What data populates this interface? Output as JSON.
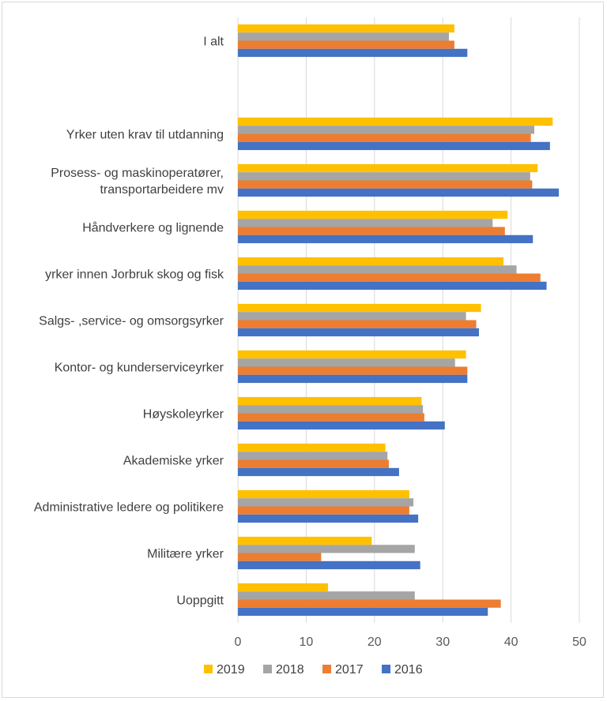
{
  "chart_data": {
    "type": "bar",
    "orientation": "horizontal",
    "categories": [
      [
        "I alt"
      ],
      [
        ""
      ],
      [
        "Yrker uten krav til utdanning"
      ],
      [
        "Prosess- og maskinoperatører,",
        "transportarbeidere mv"
      ],
      [
        "Håndverkere og lignende"
      ],
      [
        "yrker innen Jorbruk skog og fisk"
      ],
      [
        "Salgs- ,service- og omsorgsyrker"
      ],
      [
        "Kontor- og kunderserviceyrker"
      ],
      [
        "Høyskoleyrker"
      ],
      [
        "Akademiske yrker"
      ],
      [
        "Administrative ledere og politikere"
      ],
      [
        "Militære yrker"
      ],
      [
        "Uoppgitt"
      ]
    ],
    "series": [
      {
        "name": "2019",
        "color": "#FFC000",
        "values": [
          31.7,
          null,
          46.1,
          43.9,
          39.5,
          38.9,
          35.6,
          33.4,
          26.9,
          21.6,
          25.1,
          19.6,
          13.2
        ]
      },
      {
        "name": "2018",
        "color": "#A5A5A5",
        "values": [
          30.9,
          null,
          43.4,
          42.8,
          37.3,
          40.8,
          33.4,
          31.8,
          27.1,
          21.9,
          25.7,
          25.9,
          25.9
        ]
      },
      {
        "name": "2017",
        "color": "#ED7D31",
        "values": [
          31.7,
          null,
          42.9,
          43.1,
          39.1,
          44.3,
          34.9,
          33.6,
          27.3,
          22.1,
          25.1,
          12.2,
          38.5
        ]
      },
      {
        "name": "2016",
        "color": "#4472C4",
        "values": [
          33.6,
          null,
          45.7,
          47.0,
          43.2,
          45.2,
          35.3,
          33.6,
          30.3,
          23.6,
          26.4,
          26.7,
          36.6
        ]
      }
    ],
    "xlim": [
      0,
      50
    ],
    "xticks": [
      0,
      10,
      20,
      30,
      40,
      50
    ],
    "title": "",
    "xlabel": "",
    "ylabel": "",
    "grid": "vertical",
    "legend": {
      "position": "bottom",
      "order": [
        "2019",
        "2018",
        "2017",
        "2016"
      ]
    }
  }
}
